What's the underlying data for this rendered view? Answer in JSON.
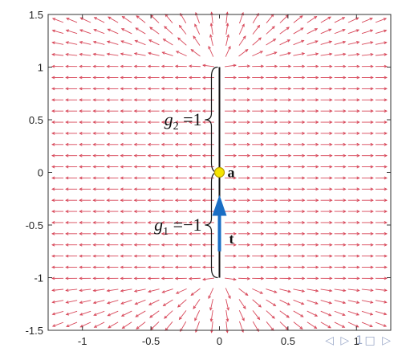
{
  "chart_data": {
    "type": "vector_field",
    "xlim": [
      -1.25,
      1.25
    ],
    "ylim": [
      -1.5,
      1.5
    ],
    "x_ticks": [
      -1,
      -0.5,
      0,
      0.5,
      1
    ],
    "x_tick_labels": [
      "-1",
      "-0.5",
      "0",
      "0.5",
      "1"
    ],
    "y_ticks": [
      -1.5,
      -1,
      -0.5,
      0,
      0.5,
      1,
      1.5
    ],
    "y_tick_labels": [
      "-1.5",
      "-1",
      "-0.5",
      "0",
      "0.5",
      "1",
      "1.5"
    ],
    "field": {
      "description": "outward flow from segment on y-axis",
      "segment_x": 0,
      "segment_y": [
        -1,
        1
      ],
      "x_range": [
        -1.15,
        1.15
      ],
      "y_range": [
        -1.43,
        1.43
      ],
      "nx": 24,
      "ny": 28,
      "color": "#d8485a"
    },
    "segment": {
      "x": 0,
      "y_from": -1,
      "y_to": 1,
      "color": "#111111"
    },
    "point_a": {
      "x": 0,
      "y": 0,
      "label": "a",
      "fill": "#f5e400",
      "stroke": "#b59a00"
    },
    "tangent": {
      "x": 0,
      "y_from": -0.75,
      "y_to": -0.26,
      "label": "t",
      "color": "#1a6ec4"
    },
    "upper_brace": {
      "y_from": 0,
      "y_to": 1,
      "label_main": "g",
      "label_sub": "2",
      "label_rest": "=1"
    },
    "lower_brace": {
      "y_from": -1,
      "y_to": 0,
      "label_main": "g",
      "label_sub": "1",
      "label_rest": "=−1"
    }
  },
  "nav": {
    "text": "◁ ▷ 1□ ▷"
  }
}
